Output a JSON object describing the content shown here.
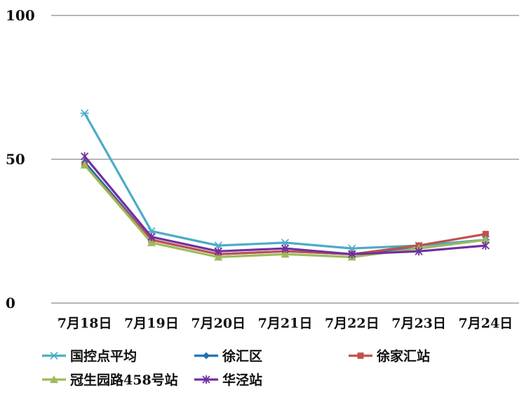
{
  "chart_data": {
    "type": "line",
    "categories": [
      "7月18日",
      "7月19日",
      "7月20日",
      "7月21日",
      "7月22日",
      "7月23日",
      "7月24日"
    ],
    "ylim": [
      0,
      100
    ],
    "yticks": [
      "0",
      "50",
      "100"
    ],
    "grid": true,
    "legend_position": "bottom",
    "series": [
      {
        "name": "国控点平均",
        "color": "#4BACC6",
        "marker": "star",
        "values": [
          66,
          25,
          20,
          21,
          19,
          20,
          22
        ]
      },
      {
        "name": "徐汇区",
        "color": "#1F6FB4",
        "marker": "diamond",
        "values": [
          49,
          22,
          17,
          18,
          17,
          19,
          22
        ]
      },
      {
        "name": "徐家汇站",
        "color": "#C0504D",
        "marker": "square",
        "values": [
          48,
          22,
          17,
          18,
          17,
          20,
          24
        ]
      },
      {
        "name": "冠生园路458号站",
        "color": "#9BBB59",
        "marker": "triangle",
        "values": [
          48,
          21,
          16,
          17,
          16,
          19,
          22
        ]
      },
      {
        "name": "华泾站",
        "color": "#7030A0",
        "marker": "asterisk",
        "values": [
          51,
          23,
          18,
          19,
          17,
          18,
          20
        ]
      }
    ]
  }
}
